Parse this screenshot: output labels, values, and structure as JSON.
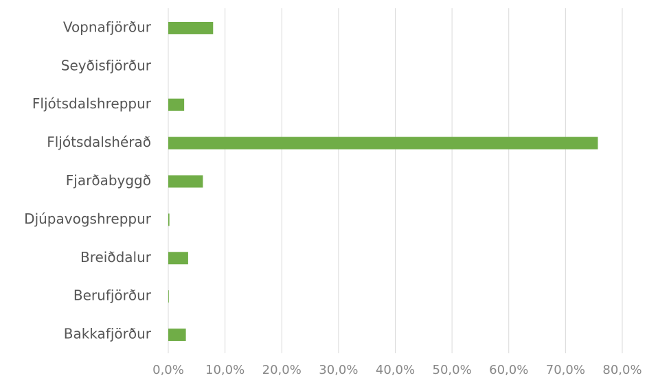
{
  "chart_data": {
    "type": "barh",
    "categories": [
      "Vopnafjörður",
      "Seyðisfjörður",
      "Fljótsdalshreppur",
      "Fljótsdalshérað",
      "Fjarðabyggð",
      "Djúpavogshreppur",
      "Breiðdalur",
      "Berufjörður",
      "Bakkafjörður"
    ],
    "values": [
      7.9,
      0,
      2.8,
      75.7,
      6.1,
      0.2,
      3.5,
      0.1,
      3.1
    ],
    "color": "#70ad47",
    "xlim": [
      0,
      80
    ],
    "xticks": [
      {
        "value": 0,
        "label": "0,0%"
      },
      {
        "value": 10,
        "label": "10,0%"
      },
      {
        "value": 20,
        "label": "20,0%"
      },
      {
        "value": 30,
        "label": "30,0%"
      },
      {
        "value": 40,
        "label": "40,0%"
      },
      {
        "value": 50,
        "label": "50,0%"
      },
      {
        "value": 60,
        "label": "60,0%"
      },
      {
        "value": 70,
        "label": "70,0%"
      },
      {
        "value": 80,
        "label": "80,0%"
      }
    ],
    "grid": true
  }
}
